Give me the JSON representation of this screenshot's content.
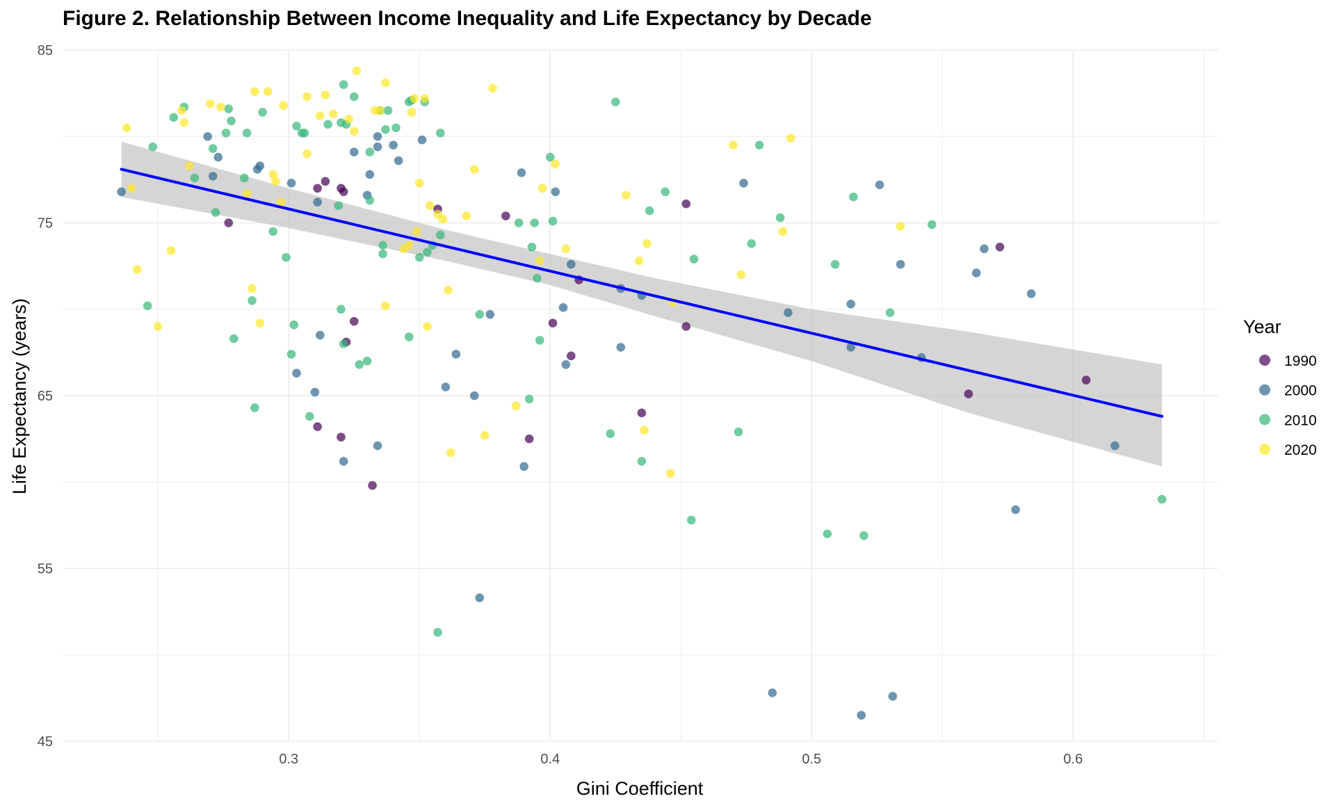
{
  "chart_data": {
    "type": "scatter",
    "title": "Figure 2. Relationship Between Income Inequality and Life Expectancy by Decade",
    "xlabel": "Gini Coefficient",
    "ylabel": "Life Expectancy (years)",
    "xlim": [
      0.2135,
      0.6555
    ],
    "ylim": [
      45,
      85
    ],
    "x_ticks": [
      0.3,
      0.4,
      0.5,
      0.6
    ],
    "x_tick_labels": [
      "0.3",
      "0.4",
      "0.5",
      "0.6"
    ],
    "y_ticks": [
      45,
      55,
      65,
      75,
      85
    ],
    "y_tick_labels": [
      "45",
      "55",
      "65",
      "75",
      "85"
    ],
    "grid": true,
    "legend": {
      "title": "Year",
      "position": "right"
    },
    "series": [
      {
        "name": "1990",
        "color": "#440154",
        "points": [
          [
            0.277,
            75.0
          ],
          [
            0.311,
            77.0
          ],
          [
            0.314,
            77.4
          ],
          [
            0.32,
            77.0
          ],
          [
            0.321,
            76.8
          ],
          [
            0.357,
            75.8
          ],
          [
            0.383,
            75.4
          ],
          [
            0.322,
            68.1
          ],
          [
            0.325,
            69.3
          ],
          [
            0.401,
            69.2
          ],
          [
            0.408,
            67.3
          ],
          [
            0.411,
            71.7
          ],
          [
            0.452,
            76.1
          ],
          [
            0.452,
            69.0
          ],
          [
            0.435,
            64.0
          ],
          [
            0.311,
            63.2
          ],
          [
            0.32,
            62.6
          ],
          [
            0.392,
            62.5
          ],
          [
            0.332,
            59.8
          ],
          [
            0.56,
            65.1
          ],
          [
            0.572,
            73.6
          ],
          [
            0.605,
            65.9
          ]
        ]
      },
      {
        "name": "2000",
        "color": "#31688e",
        "points": [
          [
            0.236,
            76.8
          ],
          [
            0.269,
            80.0
          ],
          [
            0.271,
            77.7
          ],
          [
            0.273,
            78.8
          ],
          [
            0.288,
            78.1
          ],
          [
            0.289,
            78.3
          ],
          [
            0.301,
            77.3
          ],
          [
            0.311,
            76.2
          ],
          [
            0.312,
            68.5
          ],
          [
            0.303,
            66.3
          ],
          [
            0.31,
            65.2
          ],
          [
            0.321,
            61.2
          ],
          [
            0.325,
            79.1
          ],
          [
            0.33,
            76.6
          ],
          [
            0.331,
            77.8
          ],
          [
            0.334,
            80.0
          ],
          [
            0.334,
            79.4
          ],
          [
            0.34,
            79.5
          ],
          [
            0.342,
            78.6
          ],
          [
            0.334,
            62.1
          ],
          [
            0.351,
            79.8
          ],
          [
            0.36,
            65.5
          ],
          [
            0.364,
            67.4
          ],
          [
            0.371,
            65.0
          ],
          [
            0.377,
            69.7
          ],
          [
            0.389,
            77.9
          ],
          [
            0.39,
            60.9
          ],
          [
            0.402,
            76.8
          ],
          [
            0.405,
            70.1
          ],
          [
            0.406,
            66.8
          ],
          [
            0.408,
            72.6
          ],
          [
            0.427,
            71.2
          ],
          [
            0.427,
            67.8
          ],
          [
            0.435,
            70.8
          ],
          [
            0.474,
            77.3
          ],
          [
            0.485,
            47.8
          ],
          [
            0.491,
            69.8
          ],
          [
            0.515,
            70.3
          ],
          [
            0.515,
            67.8
          ],
          [
            0.519,
            46.5
          ],
          [
            0.526,
            77.2
          ],
          [
            0.531,
            47.6
          ],
          [
            0.534,
            72.6
          ],
          [
            0.542,
            67.2
          ],
          [
            0.563,
            72.1
          ],
          [
            0.566,
            73.5
          ],
          [
            0.578,
            58.4
          ],
          [
            0.584,
            70.9
          ],
          [
            0.616,
            62.1
          ],
          [
            0.373,
            53.3
          ]
        ]
      },
      {
        "name": "2010",
        "color": "#35b779",
        "points": [
          [
            0.248,
            79.4
          ],
          [
            0.256,
            81.1
          ],
          [
            0.26,
            81.7
          ],
          [
            0.264,
            77.6
          ],
          [
            0.271,
            79.3
          ],
          [
            0.272,
            75.6
          ],
          [
            0.276,
            80.2
          ],
          [
            0.277,
            81.6
          ],
          [
            0.278,
            80.9
          ],
          [
            0.284,
            80.2
          ],
          [
            0.286,
            70.5
          ],
          [
            0.29,
            81.4
          ],
          [
            0.294,
            74.5
          ],
          [
            0.299,
            73.0
          ],
          [
            0.301,
            67.4
          ],
          [
            0.302,
            69.1
          ],
          [
            0.303,
            80.6
          ],
          [
            0.305,
            80.2
          ],
          [
            0.306,
            80.2
          ],
          [
            0.308,
            63.8
          ],
          [
            0.315,
            80.7
          ],
          [
            0.319,
            76.0
          ],
          [
            0.32,
            80.8
          ],
          [
            0.32,
            70.0
          ],
          [
            0.321,
            68.0
          ],
          [
            0.321,
            83.0
          ],
          [
            0.322,
            80.7
          ],
          [
            0.325,
            82.3
          ],
          [
            0.327,
            66.8
          ],
          [
            0.33,
            67.0
          ],
          [
            0.331,
            76.3
          ],
          [
            0.331,
            79.1
          ],
          [
            0.335,
            81.5
          ],
          [
            0.336,
            73.2
          ],
          [
            0.336,
            73.7
          ],
          [
            0.337,
            80.4
          ],
          [
            0.338,
            81.5
          ],
          [
            0.341,
            80.5
          ],
          [
            0.346,
            68.4
          ],
          [
            0.346,
            82.0
          ],
          [
            0.347,
            82.1
          ],
          [
            0.35,
            73.0
          ],
          [
            0.352,
            82.0
          ],
          [
            0.353,
            73.3
          ],
          [
            0.355,
            73.7
          ],
          [
            0.357,
            51.3
          ],
          [
            0.358,
            74.3
          ],
          [
            0.358,
            80.2
          ],
          [
            0.373,
            69.7
          ],
          [
            0.388,
            75.0
          ],
          [
            0.392,
            64.8
          ],
          [
            0.393,
            73.6
          ],
          [
            0.394,
            75.0
          ],
          [
            0.395,
            71.8
          ],
          [
            0.396,
            68.2
          ],
          [
            0.4,
            78.8
          ],
          [
            0.401,
            75.1
          ],
          [
            0.423,
            62.8
          ],
          [
            0.425,
            82.0
          ],
          [
            0.435,
            61.2
          ],
          [
            0.438,
            75.7
          ],
          [
            0.444,
            76.8
          ],
          [
            0.454,
            57.8
          ],
          [
            0.455,
            72.9
          ],
          [
            0.472,
            62.9
          ],
          [
            0.477,
            73.8
          ],
          [
            0.48,
            79.5
          ],
          [
            0.488,
            75.3
          ],
          [
            0.506,
            57.0
          ],
          [
            0.509,
            72.6
          ],
          [
            0.516,
            76.5
          ],
          [
            0.52,
            56.9
          ],
          [
            0.53,
            69.8
          ],
          [
            0.546,
            74.9
          ],
          [
            0.634,
            59.0
          ],
          [
            0.287,
            64.3
          ],
          [
            0.279,
            68.3
          ],
          [
            0.246,
            70.2
          ],
          [
            0.283,
            77.6
          ]
        ]
      },
      {
        "name": "2020",
        "color": "#fde725",
        "points": [
          [
            0.238,
            80.5
          ],
          [
            0.24,
            77.0
          ],
          [
            0.242,
            72.3
          ],
          [
            0.25,
            69.0
          ],
          [
            0.255,
            73.4
          ],
          [
            0.259,
            81.5
          ],
          [
            0.26,
            80.8
          ],
          [
            0.262,
            78.3
          ],
          [
            0.27,
            81.9
          ],
          [
            0.274,
            81.7
          ],
          [
            0.284,
            76.7
          ],
          [
            0.286,
            71.2
          ],
          [
            0.287,
            82.6
          ],
          [
            0.289,
            69.2
          ],
          [
            0.292,
            82.6
          ],
          [
            0.294,
            77.8
          ],
          [
            0.295,
            77.4
          ],
          [
            0.297,
            76.2
          ],
          [
            0.298,
            81.8
          ],
          [
            0.307,
            82.3
          ],
          [
            0.307,
            79.0
          ],
          [
            0.312,
            81.2
          ],
          [
            0.314,
            82.4
          ],
          [
            0.317,
            81.3
          ],
          [
            0.323,
            81.0
          ],
          [
            0.325,
            80.3
          ],
          [
            0.326,
            83.8
          ],
          [
            0.333,
            81.5
          ],
          [
            0.335,
            81.5
          ],
          [
            0.337,
            70.2
          ],
          [
            0.337,
            83.1
          ],
          [
            0.344,
            73.5
          ],
          [
            0.346,
            73.7
          ],
          [
            0.347,
            81.4
          ],
          [
            0.348,
            82.2
          ],
          [
            0.349,
            74.5
          ],
          [
            0.35,
            77.3
          ],
          [
            0.352,
            82.2
          ],
          [
            0.353,
            69.0
          ],
          [
            0.354,
            76.0
          ],
          [
            0.357,
            75.5
          ],
          [
            0.359,
            75.2
          ],
          [
            0.361,
            71.1
          ],
          [
            0.362,
            61.7
          ],
          [
            0.368,
            75.4
          ],
          [
            0.371,
            78.1
          ],
          [
            0.375,
            62.7
          ],
          [
            0.378,
            82.8
          ],
          [
            0.387,
            64.4
          ],
          [
            0.396,
            72.8
          ],
          [
            0.397,
            77.0
          ],
          [
            0.402,
            78.4
          ],
          [
            0.406,
            73.5
          ],
          [
            0.429,
            76.6
          ],
          [
            0.434,
            72.8
          ],
          [
            0.436,
            63.0
          ],
          [
            0.437,
            73.8
          ],
          [
            0.446,
            60.5
          ],
          [
            0.447,
            70.4
          ],
          [
            0.47,
            79.5
          ],
          [
            0.473,
            72.0
          ],
          [
            0.489,
            74.5
          ],
          [
            0.492,
            79.9
          ],
          [
            0.534,
            74.8
          ]
        ]
      }
    ],
    "trend_line": {
      "color": "#0000ff",
      "start": [
        0.236,
        78.1
      ],
      "end": [
        0.634,
        63.8
      ]
    },
    "confidence_band": {
      "color": "#bebebe",
      "upper": [
        [
          0.236,
          79.7
        ],
        [
          0.3,
          77.0
        ],
        [
          0.36,
          74.6
        ],
        [
          0.4,
          73.2
        ],
        [
          0.44,
          71.8
        ],
        [
          0.5,
          70.0
        ],
        [
          0.56,
          68.7
        ],
        [
          0.634,
          66.8
        ]
      ],
      "lower": [
        [
          0.236,
          76.5
        ],
        [
          0.3,
          74.7
        ],
        [
          0.36,
          72.8
        ],
        [
          0.4,
          71.4
        ],
        [
          0.44,
          69.6
        ],
        [
          0.5,
          67.0
        ],
        [
          0.56,
          64.0
        ],
        [
          0.634,
          60.9
        ]
      ]
    }
  }
}
